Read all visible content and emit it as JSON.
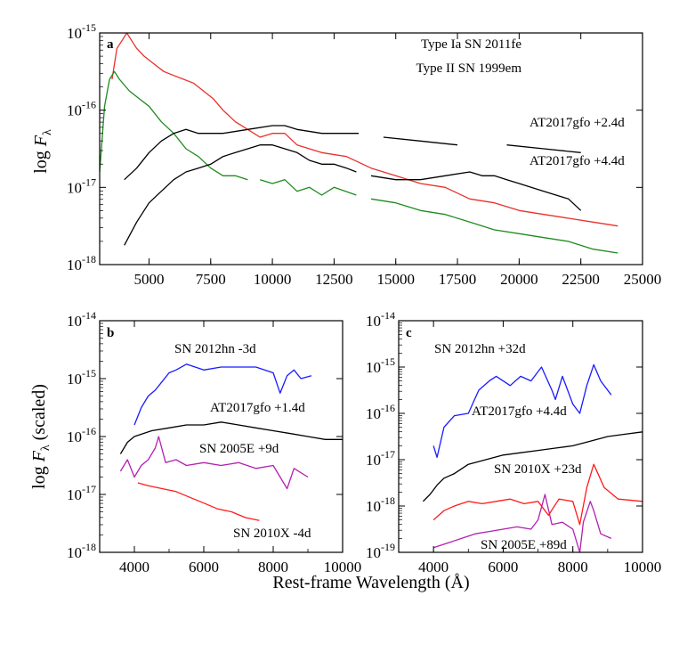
{
  "chart_data": [
    {
      "type": "line",
      "panel_label": "a",
      "ylabel_prefix": "log ",
      "ylabel_var": "F",
      "ylabel_sub": "λ",
      "xlim": [
        3000,
        25000
      ],
      "ylim_log10": [
        -18,
        -15
      ],
      "xticks": [
        "5000",
        "7500",
        "10000",
        "12500",
        "15000",
        "17500",
        "20000",
        "22500",
        "25000"
      ],
      "xtick_values": [
        5000,
        7500,
        10000,
        12500,
        15000,
        17500,
        20000,
        22500,
        25000
      ],
      "yticks": [
        {
          "base": "10",
          "exp": "-15",
          "value": -15
        },
        {
          "base": "10",
          "exp": "-16",
          "value": -16
        },
        {
          "base": "10",
          "exp": "-17",
          "value": -17
        },
        {
          "base": "10",
          "exp": "-18",
          "value": -18
        }
      ],
      "legend": [
        {
          "text": "Type Ia SN 2011fe",
          "color": "#e8302a"
        },
        {
          "text": "Type II SN 1999em",
          "color": "#1f8a1f"
        }
      ],
      "annotations": [
        {
          "text": "AT2017gfo +2.4d",
          "color": "#000000"
        },
        {
          "text": "AT2017gfo +4.4d",
          "color": "#000000"
        }
      ],
      "series": [
        {
          "name": "Type Ia SN 2011fe",
          "color": "#e8302a",
          "x": [
            3500,
            3700,
            3900,
            4100,
            4300,
            4500,
            4800,
            5200,
            5600,
            6000,
            6400,
            6800,
            7200,
            7600,
            8000,
            8500,
            9000,
            9500,
            10000,
            10500,
            11000,
            12000,
            13000,
            14000,
            15000,
            16000,
            17000,
            18000,
            19000,
            20000,
            21000,
            22000,
            23000,
            24000
          ],
          "y": [
            -15.6,
            -15.2,
            -15.1,
            -15.0,
            -15.1,
            -15.2,
            -15.3,
            -15.4,
            -15.5,
            -15.55,
            -15.6,
            -15.65,
            -15.75,
            -15.85,
            -16.0,
            -16.15,
            -16.25,
            -16.35,
            -16.3,
            -16.3,
            -16.45,
            -16.55,
            -16.6,
            -16.75,
            -16.85,
            -16.95,
            -17.0,
            -17.15,
            -17.2,
            -17.3,
            -17.35,
            -17.4,
            -17.45,
            -17.5
          ]
        },
        {
          "name": "Type II SN 1999em",
          "color": "#1f8a1f",
          "x": [
            3000,
            3200,
            3400,
            3600,
            3800,
            4200,
            4600,
            5000,
            5500,
            6000,
            6500,
            7000,
            7500,
            8000,
            8500,
            9000,
            null,
            9500,
            10000,
            10500,
            11000,
            11500,
            12000,
            12500,
            13400,
            null,
            14000,
            15000,
            16000,
            17000,
            18000,
            19000,
            20000,
            21000,
            22000,
            23000,
            24000
          ],
          "y": [
            -16.8,
            -15.95,
            -15.6,
            -15.5,
            -15.6,
            -15.75,
            -15.85,
            -15.95,
            -16.15,
            -16.3,
            -16.5,
            -16.6,
            -16.75,
            -16.85,
            -16.85,
            -16.9,
            null,
            -16.9,
            -16.95,
            -16.9,
            -17.05,
            -17.0,
            -17.1,
            -17.0,
            -17.1,
            null,
            -17.15,
            -17.2,
            -17.3,
            -17.35,
            -17.45,
            -17.55,
            -17.6,
            -17.65,
            -17.7,
            -17.8,
            -17.85
          ]
        },
        {
          "name": "AT2017gfo +2.4d",
          "color": "#000000",
          "x": [
            4000,
            4500,
            5000,
            5500,
            6000,
            6500,
            7000,
            8000,
            9000,
            10000,
            10500,
            11000,
            12000,
            13000,
            13500,
            null,
            14500,
            16000,
            17500,
            null,
            19500,
            21000,
            22500
          ],
          "y": [
            -16.9,
            -16.75,
            -16.55,
            -16.4,
            -16.3,
            -16.25,
            -16.3,
            -16.3,
            -16.25,
            -16.2,
            -16.2,
            -16.25,
            -16.3,
            -16.3,
            -16.3,
            null,
            -16.35,
            -16.4,
            -16.45,
            null,
            -16.45,
            -16.5,
            -16.55
          ]
        },
        {
          "name": "AT2017gfo +4.4d",
          "color": "#000000",
          "x": [
            4000,
            4500,
            5000,
            5500,
            6000,
            6500,
            7000,
            7500,
            8000,
            8500,
            9000,
            9500,
            10000,
            10500,
            11000,
            11500,
            12000,
            12500,
            13000,
            13400,
            null,
            14000,
            15000,
            16000,
            17000,
            18000,
            18500,
            19000,
            19500,
            20000,
            21000,
            22000,
            22500
          ],
          "y": [
            -17.75,
            -17.45,
            -17.2,
            -17.05,
            -16.9,
            -16.8,
            -16.75,
            -16.7,
            -16.6,
            -16.55,
            -16.5,
            -16.45,
            -16.45,
            -16.5,
            -16.55,
            -16.65,
            -16.7,
            -16.7,
            -16.75,
            -16.8,
            null,
            -16.85,
            -16.9,
            -16.9,
            -16.85,
            -16.8,
            -16.85,
            -16.85,
            -16.9,
            -16.95,
            -17.05,
            -17.15,
            -17.3
          ]
        }
      ]
    },
    {
      "type": "line",
      "panel_label": "b",
      "ylabel_prefix": "log ",
      "ylabel_var": "F",
      "ylabel_sub": "λ",
      "ylabel_suffix": " (scaled)",
      "xlim": [
        3000,
        10000
      ],
      "ylim_log10": [
        -18,
        -14
      ],
      "xticks": [
        "4000",
        "6000",
        "8000",
        "10000"
      ],
      "xtick_values": [
        4000,
        6000,
        8000,
        10000
      ],
      "yticks": [
        {
          "base": "10",
          "exp": "-14",
          "value": -14
        },
        {
          "base": "10",
          "exp": "-15",
          "value": -15
        },
        {
          "base": "10",
          "exp": "-16",
          "value": -16
        },
        {
          "base": "10",
          "exp": "-17",
          "value": -17
        },
        {
          "base": "10",
          "exp": "-18",
          "value": -18
        }
      ],
      "annotations": [
        {
          "text": "SN 2012hn  -3d",
          "color": "#1a1aff"
        },
        {
          "text": "AT2017gfo +1.4d",
          "color": "#000000"
        },
        {
          "text": "SN 2005E  +9d",
          "color": "#b31fb3"
        },
        {
          "text": "SN 2010X  -4d",
          "color": "#ff1a1a"
        }
      ],
      "series": [
        {
          "name": "SN 2012hn -3d",
          "color": "#1a1aff",
          "x": [
            4000,
            4200,
            4400,
            4600,
            4800,
            5000,
            5200,
            5500,
            6000,
            6500,
            7000,
            7500,
            8000,
            8200,
            8400,
            8600,
            8800,
            9100
          ],
          "y": [
            -15.8,
            -15.5,
            -15.3,
            -15.2,
            -15.05,
            -14.9,
            -14.85,
            -14.75,
            -14.85,
            -14.8,
            -14.8,
            -14.8,
            -14.9,
            -15.25,
            -14.95,
            -14.85,
            -15.0,
            -14.95
          ]
        },
        {
          "name": "AT2017gfo +1.4d",
          "color": "#000000",
          "x": [
            3600,
            3800,
            4000,
            4500,
            5000,
            5500,
            6000,
            6500,
            7000,
            7500,
            8000,
            8500,
            9000,
            9500,
            10000
          ],
          "y": [
            -16.3,
            -16.1,
            -16.0,
            -15.9,
            -15.85,
            -15.8,
            -15.8,
            -15.75,
            -15.8,
            -15.85,
            -15.9,
            -15.95,
            -16.0,
            -16.05,
            -16.05
          ]
        },
        {
          "name": "SN 2005E +9d",
          "color": "#b31fb3",
          "x": [
            3600,
            3800,
            4000,
            4200,
            4400,
            4600,
            4700,
            4900,
            5200,
            5500,
            6000,
            6500,
            7000,
            7500,
            8000,
            8400,
            8600,
            9000
          ],
          "y": [
            -16.6,
            -16.4,
            -16.7,
            -16.5,
            -16.4,
            -16.2,
            -16.0,
            -16.45,
            -16.4,
            -16.5,
            -16.45,
            -16.5,
            -16.45,
            -16.55,
            -16.5,
            -16.9,
            -16.55,
            -16.7
          ]
        },
        {
          "name": "SN 2010X -4d",
          "color": "#ff1a1a",
          "x": [
            4100,
            4400,
            4800,
            5200,
            5600,
            6000,
            6400,
            6800,
            7200,
            7600
          ],
          "y": [
            -16.8,
            -16.85,
            -16.9,
            -16.95,
            -17.05,
            -17.15,
            -17.25,
            -17.3,
            -17.4,
            -17.45
          ]
        }
      ]
    },
    {
      "type": "line",
      "panel_label": "c",
      "xlim": [
        3000,
        10000
      ],
      "ylim_log10": [
        -19,
        -14
      ],
      "xticks": [
        "4000",
        "6000",
        "8000",
        "10000"
      ],
      "xtick_values": [
        4000,
        6000,
        8000,
        10000
      ],
      "yticks": [
        {
          "base": "10",
          "exp": "-14",
          "value": -14
        },
        {
          "base": "10",
          "exp": "-15",
          "value": -15
        },
        {
          "base": "10",
          "exp": "-16",
          "value": -16
        },
        {
          "base": "10",
          "exp": "-17",
          "value": -17
        },
        {
          "base": "10",
          "exp": "-18",
          "value": -18
        },
        {
          "base": "10",
          "exp": "-19",
          "value": -19
        }
      ],
      "annotations": [
        {
          "text": "SN 2012hn  +32d",
          "color": "#1a1aff"
        },
        {
          "text": "AT2017gfo +4.4d",
          "color": "#000000"
        },
        {
          "text": "SN 2010X  +23d",
          "color": "#ff1a1a"
        },
        {
          "text": "SN 2005E  +89d",
          "color": "#b31fb3"
        }
      ],
      "series": [
        {
          "name": "SN 2012hn +32d",
          "color": "#1a1aff",
          "x": [
            4000,
            4100,
            4300,
            4600,
            5000,
            5300,
            5600,
            5800,
            6200,
            6500,
            6800,
            7100,
            7400,
            7500,
            7700,
            8000,
            8200,
            8400,
            8600,
            8800,
            9100
          ],
          "y": [
            -16.7,
            -16.95,
            -16.3,
            -16.05,
            -16.0,
            -15.5,
            -15.3,
            -15.2,
            -15.4,
            -15.2,
            -15.3,
            -15.0,
            -15.5,
            -15.7,
            -15.2,
            -15.8,
            -16.0,
            -15.4,
            -14.95,
            -15.3,
            -15.6
          ]
        },
        {
          "name": "AT2017gfo +4.4d",
          "color": "#000000",
          "x": [
            3700,
            3900,
            4100,
            4300,
            4600,
            5000,
            5500,
            6000,
            6500,
            7000,
            7500,
            8000,
            8500,
            9000,
            9500,
            10000
          ],
          "y": [
            -17.9,
            -17.75,
            -17.55,
            -17.4,
            -17.3,
            -17.1,
            -17.0,
            -16.9,
            -16.85,
            -16.8,
            -16.75,
            -16.7,
            -16.6,
            -16.5,
            -16.45,
            -16.4
          ]
        },
        {
          "name": "SN 2010X +23d",
          "color": "#ff1a1a",
          "x": [
            4000,
            4300,
            4600,
            5000,
            5400,
            5800,
            6200,
            6600,
            7000,
            7300,
            7600,
            8000,
            8200,
            8400,
            8600,
            8900,
            9300,
            10000
          ],
          "y": [
            -18.3,
            -18.1,
            -18.0,
            -17.9,
            -17.95,
            -17.9,
            -17.85,
            -17.95,
            -17.9,
            -18.2,
            -17.85,
            -17.9,
            -18.4,
            -17.6,
            -17.1,
            -17.6,
            -17.85,
            -17.9
          ]
        },
        {
          "name": "SN 2005E +89d",
          "color": "#b31fb3",
          "x": [
            4000,
            4400,
            4800,
            5200,
            5600,
            6000,
            6400,
            6800,
            7000,
            7200,
            7400,
            7700,
            8000,
            8200,
            8300,
            8500,
            8600,
            8800,
            9100
          ],
          "y": [
            -18.9,
            -18.8,
            -18.7,
            -18.6,
            -18.55,
            -18.5,
            -18.45,
            -18.5,
            -18.3,
            -17.75,
            -18.4,
            -18.35,
            -18.5,
            -19.0,
            -18.35,
            -17.9,
            -18.1,
            -18.6,
            -18.7
          ]
        }
      ]
    }
  ],
  "shared_xlabel": "Rest-frame Wavelength (Å)"
}
